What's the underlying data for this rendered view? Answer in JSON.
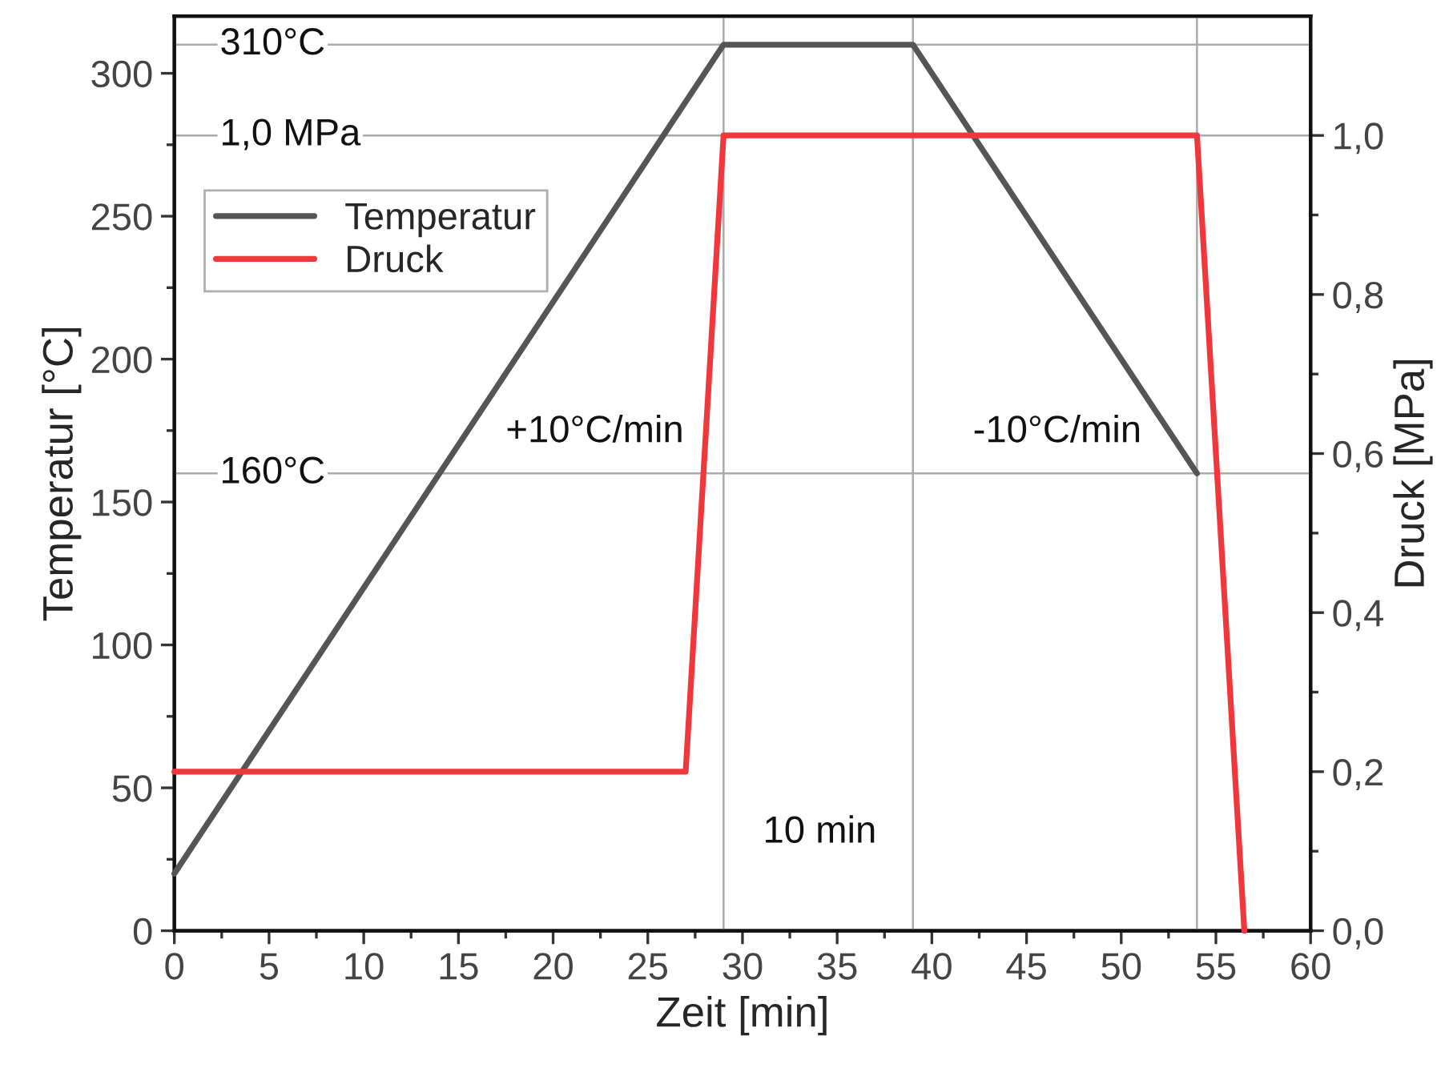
{
  "chart_data": {
    "type": "line",
    "xlabel": "Zeit [min]",
    "ylabel": "Temperatur [°C]",
    "y2label": "Druck [MPa]",
    "xlim": [
      0,
      60
    ],
    "xticks": [
      0,
      5,
      10,
      15,
      20,
      25,
      30,
      35,
      40,
      45,
      50,
      55,
      60
    ],
    "ylim": [
      0,
      320
    ],
    "yticks": [
      0,
      50,
      100,
      150,
      200,
      250,
      300
    ],
    "y2lim": [
      0,
      1.15
    ],
    "y2ticks": [
      {
        "value": 0,
        "label": "0,0"
      },
      {
        "value": 0.2,
        "label": "0,2"
      },
      {
        "value": 0.4,
        "label": "0,4"
      },
      {
        "value": 0.6,
        "label": "0,6"
      },
      {
        "value": 0.8,
        "label": "0,8"
      },
      {
        "value": 1.0,
        "label": "1,0"
      }
    ],
    "series": [
      {
        "name": "Temperatur",
        "color": "#555555",
        "x": [
          0,
          29,
          39,
          54
        ],
        "values": [
          20,
          310,
          310,
          160
        ]
      },
      {
        "name": "Druck",
        "color": "#f0373c",
        "axis": "y2",
        "x": [
          0,
          27,
          29,
          54,
          56.5
        ],
        "values": [
          0.2,
          0.2,
          1.0,
          1.0,
          0.0
        ]
      }
    ],
    "ref_lines": [
      {
        "axis": "y",
        "value": 310,
        "label": "310°C",
        "color": "#aaaaaa"
      },
      {
        "axis": "y2",
        "value": 1.0,
        "label": "1,0 MPa",
        "color": "#aaaaaa"
      },
      {
        "axis": "y",
        "value": 160,
        "label": "160°C",
        "color": "#aaaaaa"
      },
      {
        "axis": "x",
        "value": 29,
        "color": "#aaaaaa"
      },
      {
        "axis": "x",
        "value": 39,
        "color": "#aaaaaa"
      },
      {
        "axis": "x",
        "value": 54,
        "color": "#aaaaaa"
      }
    ],
    "annotations": [
      "+10°C/min",
      "-10°C/min",
      "10 min"
    ],
    "legend": "top left",
    "grid": false,
    "marker": "none",
    "line_style": "solid"
  }
}
